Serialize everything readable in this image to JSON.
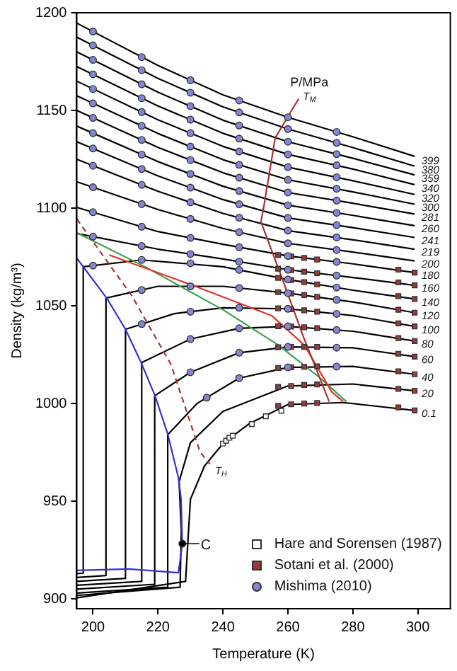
{
  "chart_data": {
    "type": "line",
    "xlabel": "Temperature (K)",
    "ylabel": "Density (kg/m³)",
    "xlim": [
      195,
      310
    ],
    "ylim": [
      895,
      1200
    ],
    "xticks": [
      200,
      220,
      240,
      260,
      280,
      300
    ],
    "yticks": [
      900,
      950,
      1000,
      1050,
      1100,
      1150,
      1200
    ],
    "grid": false,
    "legend": "bottom right",
    "marker": "none",
    "annotations": [
      "P/MPa"
    ],
    "series": [
      {
        "name": "399",
        "color": "#000000",
        "x": [
          195,
          220,
          240,
          260,
          280,
          299
        ],
        "values": [
          1194.7,
          1173,
          1158,
          1146.5,
          1136.5,
          1126.5
        ]
      },
      {
        "name": "380",
        "color": "#000000",
        "x": [
          195,
          220,
          240,
          260,
          280,
          299
        ],
        "values": [
          1187.5,
          1166.4,
          1151.8,
          1140.5,
          1131,
          1121.5
        ]
      },
      {
        "name": "359",
        "color": "#000000",
        "x": [
          195,
          220,
          240,
          260,
          280,
          299
        ],
        "values": [
          1180,
          1159.3,
          1145,
          1134,
          1125.5,
          1117
        ]
      },
      {
        "name": "340",
        "color": "#000000",
        "x": [
          195,
          220,
          240,
          260,
          280,
          299
        ],
        "values": [
          1172.5,
          1152.3,
          1138.3,
          1127.5,
          1120,
          1112
        ]
      },
      {
        "name": "320",
        "color": "#000000",
        "x": [
          195,
          220,
          240,
          260,
          280,
          299
        ],
        "values": [
          1165,
          1145.2,
          1131.6,
          1121,
          1114,
          1107
        ]
      },
      {
        "name": "300",
        "color": "#000000",
        "x": [
          195,
          220,
          240,
          260,
          280,
          299
        ],
        "values": [
          1157.5,
          1138.2,
          1124.8,
          1114.5,
          1108.3,
          1102
        ]
      },
      {
        "name": "281",
        "color": "#000000",
        "x": [
          195,
          220,
          240,
          260,
          280,
          299
        ],
        "values": [
          1150,
          1131.1,
          1118.1,
          1108,
          1102.5,
          1097
        ]
      },
      {
        "name": "260",
        "color": "#000000",
        "x": [
          195,
          220,
          240,
          260,
          280,
          299
        ],
        "values": [
          1142,
          1123.8,
          1111.2,
          1101.5,
          1096.3,
          1091
        ]
      },
      {
        "name": "241",
        "color": "#000000",
        "x": [
          195,
          220,
          240,
          260,
          280,
          299
        ],
        "values": [
          1134,
          1116.5,
          1104.4,
          1095,
          1090,
          1085
        ]
      },
      {
        "name": "219",
        "color": "#000000",
        "x": [
          195,
          220,
          240,
          260,
          280,
          299
        ],
        "values": [
          1125,
          1108.6,
          1097.3,
          1088.5,
          1083.8,
          1079
        ]
      },
      {
        "name": "200",
        "color": "#000000",
        "x": [
          195,
          220,
          240,
          260,
          280,
          299
        ],
        "values": [
          1113.5,
          1099.3,
          1089.6,
          1082,
          1077.5,
          1073
        ]
      },
      {
        "name": "180",
        "color": "#000000",
        "x": [
          195,
          220,
          240,
          260,
          280,
          299
        ],
        "values": [
          1100.4,
          1088,
          1081.5,
          1075.5,
          1071.5,
          1067
        ]
      },
      {
        "name": "160",
        "color": "#000000",
        "x": [
          195,
          220,
          240,
          260,
          280,
          299
        ],
        "values": [
          1087,
          1079,
          1074,
          1068.5,
          1064.5,
          1060.5
        ]
      },
      {
        "name": "140",
        "color": "#000000",
        "x": [
          195,
          197,
          197,
          215,
          240,
          260,
          280,
          299
        ],
        "values": [
          913,
          913.2,
          1070,
          1073.5,
          1070,
          1063.5,
          1058,
          1053.5
        ]
      },
      {
        "name": "120",
        "color": "#000000",
        "x": [
          195,
          204,
          204,
          220,
          240,
          260,
          280,
          299
        ],
        "values": [
          911,
          912,
          1054,
          1060,
          1060,
          1056.5,
          1052,
          1046.5
        ]
      },
      {
        "name": "100",
        "color": "#000000",
        "x": [
          195,
          210,
          210,
          225,
          240,
          260,
          280,
          299
        ],
        "values": [
          909,
          910.5,
          1038,
          1046,
          1049,
          1048.5,
          1045,
          1039.5
        ]
      },
      {
        "name": "80",
        "color": "#000000",
        "x": [
          195,
          215,
          215,
          230,
          245,
          260,
          280,
          299
        ],
        "values": [
          907,
          909,
          1021,
          1033,
          1038.5,
          1039.5,
          1037,
          1032
        ]
      },
      {
        "name": "60",
        "color": "#000000",
        "x": [
          195,
          219,
          219,
          230,
          245,
          260,
          280,
          299
        ],
        "values": [
          905,
          907.5,
          1004,
          1016,
          1026,
          1029,
          1028.5,
          1024
        ]
      },
      {
        "name": "40",
        "color": "#000000",
        "x": [
          195,
          223,
          223,
          232,
          245,
          260,
          280,
          299
        ],
        "values": [
          903,
          906,
          984,
          1000,
          1013,
          1018.5,
          1019,
          1015
        ]
      },
      {
        "name": "20",
        "color": "#000000",
        "x": [
          195,
          226.8,
          227.2,
          226.5,
          230,
          240,
          260,
          280,
          299
        ],
        "values": [
          901.8,
          906,
          935,
          960,
          980,
          996,
          1009,
          1010,
          1006.5
        ]
      },
      {
        "name": "0.1",
        "color": "#000000",
        "x": [
          195,
          228.5,
          229.3,
          230,
          234.3,
          240,
          248,
          260,
          277,
          299
        ],
        "values": [
          900.6,
          909,
          932,
          951,
          968,
          979.5,
          989.6,
          999.5,
          1000.5,
          996.5
        ]
      },
      {
        "color": "#3333cc",
        "x": [
          195,
          204.3,
          210,
          214.8,
          219.1,
          223,
          226.3,
          227.1,
          227.5,
          226.3,
          211,
          195
        ],
        "values": [
          1074.4,
          1053.8,
          1038,
          1021,
          1004,
          984.4,
          962,
          951.3,
          928.3,
          913.4,
          915.3,
          914.6
        ]
      },
      {
        "color": "#3aa04a",
        "x": [
          195,
          216,
          240,
          257,
          270,
          278
        ],
        "values": [
          1087.4,
          1070,
          1048,
          1030,
          1013,
          1001
        ]
      },
      {
        "color": "#e8302a",
        "x": [
          205,
          231.5,
          255,
          265,
          273.5,
          277
        ],
        "values": [
          1076,
          1060,
          1045,
          1030,
          1006,
          1001
        ]
      },
      {
        "name": "T$_{M}$",
        "color": "#a83232",
        "x": [
          272.7,
          264.8,
          258,
          251.7,
          252.5,
          256.1,
          263.3
        ],
        "values": [
          1001,
          1034,
          1065,
          1093,
          1100,
          1136,
          1156
        ]
      },
      {
        "name": "T$_{H}$",
        "color": "#a83232",
        "line_style": "dashed",
        "x": [
          195,
          212,
          224,
          233,
          236
        ],
        "values": [
          1094.5,
          1055,
          1020,
          975,
          969
        ]
      },
      {
        "type": "scatter",
        "name": "Hare and Sorensen (1987)",
        "marker": "square",
        "color": "#ffffff",
        "x": [
          240,
          241,
          242,
          243,
          248.9,
          253.2,
          258
        ],
        "values": [
          979.5,
          981,
          982.5,
          983.5,
          989.5,
          993.5,
          996.3
        ]
      },
      {
        "type": "scatter",
        "name": "Sotani et al. (2000)",
        "marker": "square",
        "color": "#9b3b3b",
        "x": [
          257,
          261,
          265,
          269,
          294,
          299,
          257,
          261,
          265,
          269,
          294,
          299,
          257,
          261,
          265,
          269,
          294,
          299,
          257,
          261,
          265,
          269,
          294,
          299,
          257,
          261,
          265,
          269,
          294,
          299,
          257,
          261,
          265,
          269,
          294,
          299,
          257,
          261,
          265,
          269,
          294,
          299,
          257,
          261,
          265,
          269,
          294,
          299,
          257,
          261,
          265,
          269,
          294,
          299,
          257,
          261,
          265,
          269,
          294,
          299
        ],
        "values": [
          998.8,
          999.6,
          1000,
          1000.3,
          998,
          996.5,
          1008.5,
          1009,
          1009.5,
          1009.8,
          1007.5,
          1006.5,
          1018.2,
          1018.6,
          1018.8,
          1019,
          1016.5,
          1015,
          1028.8,
          1029,
          1029,
          1029,
          1025.5,
          1024,
          1039.6,
          1039.4,
          1039,
          1038.6,
          1033.5,
          1032,
          1048.7,
          1048.3,
          1047.7,
          1047,
          1041,
          1039.5,
          1057,
          1056.3,
          1055.5,
          1054.6,
          1048,
          1046.5,
          1064.3,
          1063.2,
          1062.1,
          1061,
          1055,
          1053.5,
          1069,
          1068.3,
          1067.5,
          1066.7,
          1062,
          1060.5,
          1076,
          1075.3,
          1074.5,
          1073.7,
          1068.5,
          1067
        ]
      },
      {
        "type": "scatter",
        "name": "Mishima (2010)",
        "marker": "circle",
        "color": "#8585d5",
        "x": [
          200,
          215,
          230,
          245,
          260,
          275,
          200,
          215,
          230,
          245,
          260,
          275,
          200,
          215,
          230,
          245,
          260,
          275,
          200,
          215,
          230,
          245,
          260,
          275,
          200,
          215,
          230,
          245,
          260,
          275,
          200,
          215,
          230,
          245,
          260,
          275,
          200,
          215,
          230,
          245,
          260,
          275,
          200,
          215,
          230,
          245,
          260,
          275,
          200,
          215,
          230,
          245,
          260,
          275,
          200,
          215,
          230,
          245,
          260,
          275,
          200,
          215,
          230,
          245,
          260,
          275,
          200,
          215,
          230,
          245,
          260,
          275,
          200,
          215,
          230,
          245,
          260,
          275,
          200,
          215,
          230,
          245,
          260,
          275,
          215,
          230,
          245,
          260,
          275,
          215,
          230,
          245,
          260,
          275,
          230,
          245,
          260,
          275,
          230,
          245,
          260,
          275,
          235,
          245,
          260,
          275
        ],
        "values": [
          1190.4,
          1177.3,
          1165.5,
          1155.1,
          1146.5,
          1139,
          1183.3,
          1170.6,
          1159.1,
          1149,
          1140.5,
          1133.4,
          1175.9,
          1163.4,
          1152.2,
          1142.3,
          1134,
          1127.6,
          1168.5,
          1156.3,
          1145.3,
          1135.6,
          1127.5,
          1121.9,
          1161,
          1149.2,
          1138.4,
          1129,
          1121,
          1115.8,
          1153.6,
          1142.1,
          1131.5,
          1122.2,
          1114.5,
          1109.9,
          1146.2,
          1134.9,
          1124.6,
          1115.6,
          1108,
          1103.9,
          1138.4,
          1127.4,
          1117.5,
          1108.8,
          1101.5,
          1097.6,
          1130.5,
          1120,
          1110.5,
          1102,
          1095,
          1091.3,
          1121.7,
          1111.9,
          1103,
          1095.1,
          1088.5,
          1085,
          1110.7,
          1102.1,
          1094.5,
          1087.7,
          1082,
          1078.6,
          1097.9,
          1090.5,
          1084.8,
          1080,
          1075.5,
          1072.5,
          1085.4,
          1080.6,
          1076.5,
          1072.6,
          1068.5,
          1065.5,
          1070.6,
          1073.5,
          1071.8,
          1068.4,
          1063.5,
          1059.4,
          1058.1,
          1060,
          1059.1,
          1056.5,
          1053.1,
          1040.7,
          1047,
          1049,
          1048.5,
          1045.9,
          1033,
          1038.5,
          1039.5,
          1037.6,
          1016,
          1026,
          1029,
          1028.6,
          1003,
          1013,
          1018.5,
          1018.9
        ]
      },
      {
        "type": "scatter",
        "name": "C",
        "marker": "circle",
        "color": "#000000",
        "x": [
          227.5
        ],
        "values": [
          928.3
        ]
      }
    ]
  }
}
